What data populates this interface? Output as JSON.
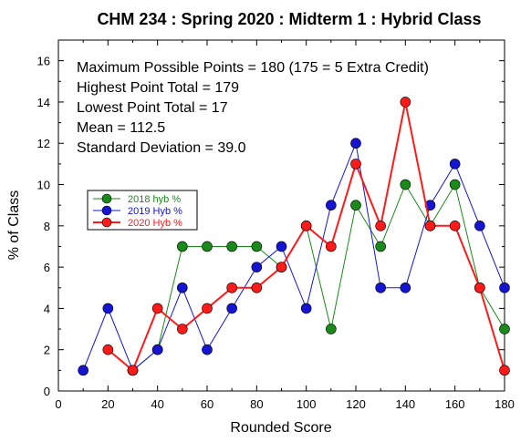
{
  "chart_data": {
    "type": "line",
    "title": "CHM 234 : Spring 2020 : Midterm 1 : Hybrid Class",
    "xlabel": "Rounded Score",
    "ylabel": "% of Class",
    "xlim": [
      0,
      180
    ],
    "ylim": [
      0,
      17
    ],
    "x_ticks": [
      0,
      20,
      40,
      60,
      80,
      100,
      120,
      140,
      160,
      180
    ],
    "y_ticks": [
      0,
      2,
      4,
      6,
      8,
      10,
      12,
      14,
      16
    ],
    "grid": false,
    "legend_position": "center-left",
    "stats": [
      "Maximum Possible Points = 180 (175 = 5 Extra Credit)",
      "Highest Point Total = 179",
      "Lowest Point Total = 17",
      "Mean = 112.5",
      "Standard Deviation = 39.0"
    ],
    "series": [
      {
        "name": "2018 hyb %",
        "color": "#1a8a1a",
        "x": [
          30,
          40,
          50,
          60,
          70,
          80,
          90,
          100,
          110,
          120,
          130,
          140,
          150,
          160,
          170,
          180
        ],
        "y": [
          1,
          2,
          7,
          7,
          7,
          7,
          6,
          8,
          3,
          9,
          7,
          10,
          8,
          10,
          5,
          3
        ]
      },
      {
        "name": "2019 Hyb %",
        "color": "#1414d2",
        "x": [
          10,
          20,
          30,
          40,
          50,
          60,
          70,
          80,
          90,
          100,
          110,
          120,
          130,
          140,
          150,
          160,
          170,
          180
        ],
        "y": [
          1,
          4,
          1,
          2,
          5,
          2,
          4,
          6,
          7,
          4,
          9,
          12,
          5,
          5,
          9,
          11,
          8,
          5
        ]
      },
      {
        "name": "2020 Hyb %",
        "color": "#ff1a1a",
        "x": [
          20,
          30,
          40,
          50,
          60,
          70,
          80,
          90,
          100,
          110,
          120,
          130,
          140,
          150,
          160,
          170,
          180
        ],
        "y": [
          2,
          1,
          4,
          3,
          4,
          5,
          5,
          6,
          8,
          7,
          11,
          8,
          14,
          8,
          8,
          5,
          1
        ]
      }
    ]
  }
}
